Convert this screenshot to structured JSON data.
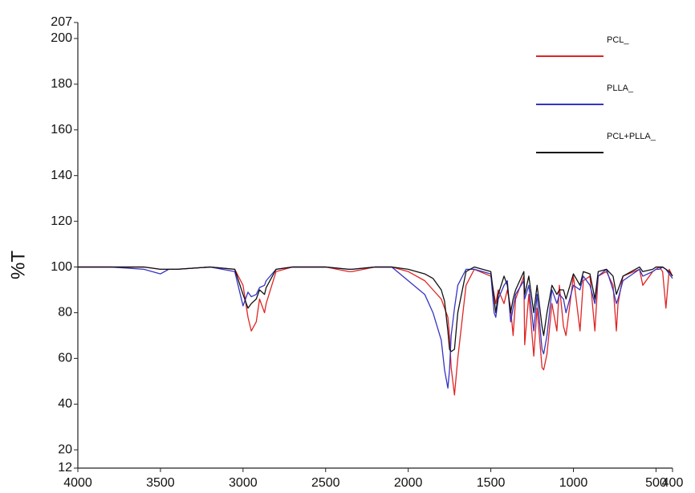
{
  "chart_data": {
    "type": "line",
    "y_label": "%T",
    "x": [
      4000,
      3800,
      3600,
      3500,
      3450,
      3400,
      3200,
      3050,
      3000,
      2970,
      2950,
      2920,
      2900,
      2870,
      2860,
      2800,
      2700,
      2500,
      2360,
      2340,
      2200,
      2100,
      2000,
      1900,
      1850,
      1800,
      1780,
      1760,
      1750,
      1740,
      1720,
      1700,
      1650,
      1600,
      1500,
      1480,
      1470,
      1455,
      1420,
      1400,
      1380,
      1365,
      1350,
      1300,
      1295,
      1270,
      1240,
      1220,
      1190,
      1180,
      1160,
      1130,
      1100,
      1085,
      1060,
      1045,
      1000,
      960,
      940,
      900,
      870,
      850,
      800,
      760,
      740,
      730,
      700,
      600,
      580,
      520,
      500,
      480,
      460,
      440,
      420,
      400
    ],
    "series": [
      {
        "name": "PCL_",
        "color": "#e02424",
        "values": [
          100,
          100,
          100,
          99,
          99,
          99,
          100,
          99,
          92,
          78,
          72,
          76,
          86,
          80,
          84,
          98,
          100,
          100,
          98,
          98,
          100,
          100,
          98,
          94,
          90,
          86,
          82,
          78,
          70,
          56,
          44,
          60,
          92,
          99,
          96,
          88,
          84,
          90,
          84,
          90,
          82,
          70,
          86,
          96,
          66,
          88,
          61,
          82,
          56,
          55,
          62,
          84,
          72,
          92,
          74,
          70,
          96,
          72,
          94,
          96,
          72,
          96,
          98,
          92,
          72,
          84,
          96,
          99,
          92,
          98,
          99,
          100,
          98,
          82,
          99,
          96
        ]
      },
      {
        "name": "PLLA_",
        "color": "#3434c4",
        "values": [
          100,
          100,
          99,
          97,
          99,
          99,
          100,
          98,
          83,
          89,
          87,
          88,
          91,
          92,
          94,
          99,
          100,
          100,
          99,
          99,
          100,
          100,
          94,
          88,
          80,
          68,
          55,
          47,
          55,
          70,
          82,
          92,
          99,
          99,
          97,
          80,
          78,
          86,
          92,
          94,
          76,
          82,
          88,
          94,
          86,
          92,
          72,
          88,
          64,
          62,
          70,
          90,
          84,
          88,
          86,
          80,
          92,
          90,
          96,
          92,
          84,
          96,
          99,
          90,
          84,
          86,
          94,
          99,
          96,
          98,
          99,
          99,
          100,
          99,
          97,
          95
        ]
      },
      {
        "name": "PCL+PLLA_",
        "color": "#111111",
        "values": [
          100,
          100,
          100,
          99,
          99,
          99,
          100,
          99,
          88,
          82,
          84,
          86,
          90,
          88,
          91,
          99,
          100,
          100,
          99,
          99,
          100,
          100,
          99,
          97,
          95,
          90,
          85,
          72,
          64,
          63,
          64,
          80,
          98,
          100,
          98,
          86,
          80,
          88,
          96,
          92,
          80,
          86,
          90,
          98,
          88,
          96,
          80,
          92,
          74,
          70,
          80,
          92,
          88,
          90,
          90,
          86,
          97,
          92,
          98,
          97,
          86,
          98,
          99,
          96,
          88,
          90,
          96,
          100,
          98,
          99,
          100,
          100,
          100,
          99,
          98,
          96
        ]
      }
    ],
    "xlim": [
      4000,
      400
    ],
    "ylim": [
      12,
      207
    ],
    "xticks": [
      4000,
      3500,
      3000,
      2500,
      2000,
      1500,
      1000,
      500,
      400
    ],
    "yticks": [
      12,
      20,
      40,
      60,
      80,
      100,
      120,
      140,
      160,
      180,
      200,
      207
    ],
    "grid": false,
    "legend": "upper right"
  }
}
